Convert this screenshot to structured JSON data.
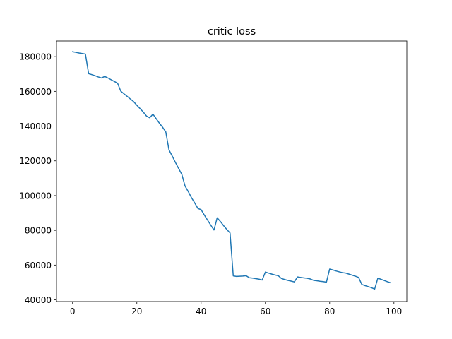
{
  "chart_data": {
    "type": "line",
    "title": "critic loss",
    "xlabel": "",
    "ylabel": "",
    "xlim": [
      -5,
      104
    ],
    "ylim": [
      39000,
      189000
    ],
    "xticks": [
      0,
      20,
      40,
      60,
      80,
      100
    ],
    "yticks": [
      40000,
      60000,
      80000,
      100000,
      120000,
      140000,
      160000,
      180000
    ],
    "grid": false,
    "line_color": "#1f77b4",
    "series": [
      {
        "x": [
          0,
          1,
          2,
          3,
          4,
          5,
          6,
          7,
          8,
          9,
          10,
          11,
          12,
          13,
          14,
          15,
          16,
          17,
          18,
          19,
          20,
          21,
          22,
          23,
          24,
          25,
          26,
          27,
          28,
          29,
          30,
          31,
          32,
          33,
          34,
          35,
          36,
          37,
          38,
          39,
          40,
          41,
          42,
          43,
          44,
          45,
          46,
          47,
          48,
          49,
          50,
          51,
          52,
          53,
          54,
          55,
          56,
          57,
          58,
          59,
          60,
          61,
          62,
          63,
          64,
          65,
          66,
          67,
          68,
          69,
          70,
          71,
          72,
          73,
          74,
          75,
          76,
          77,
          78,
          79,
          80,
          81,
          82,
          83,
          84,
          85,
          86,
          87,
          88,
          89,
          90,
          91,
          92,
          93,
          94,
          95,
          96,
          97,
          98,
          99
        ],
        "y": [
          182800,
          182500,
          182100,
          181800,
          181500,
          170200,
          169600,
          169000,
          168300,
          167700,
          168600,
          167700,
          166700,
          165700,
          164700,
          160100,
          158600,
          157100,
          155600,
          154100,
          152000,
          150100,
          148100,
          145800,
          144800,
          146900,
          144300,
          141700,
          139400,
          136700,
          126300,
          122800,
          119100,
          115600,
          112200,
          105500,
          102300,
          98800,
          95800,
          92600,
          91900,
          88800,
          85900,
          83000,
          80200,
          87200,
          85100,
          82700,
          80500,
          78500,
          53800,
          53500,
          53600,
          53700,
          53900,
          52700,
          52500,
          52200,
          51900,
          51400,
          56000,
          55400,
          54800,
          54300,
          53900,
          52300,
          51700,
          51200,
          50800,
          50300,
          53200,
          52900,
          52600,
          52400,
          52000,
          51200,
          51000,
          50700,
          50500,
          50200,
          57700,
          57200,
          56600,
          56100,
          55600,
          55400,
          54800,
          54200,
          53600,
          52900,
          48900,
          48200,
          47600,
          47000,
          46200,
          52500,
          51800,
          51100,
          50400,
          49800
        ]
      }
    ]
  }
}
